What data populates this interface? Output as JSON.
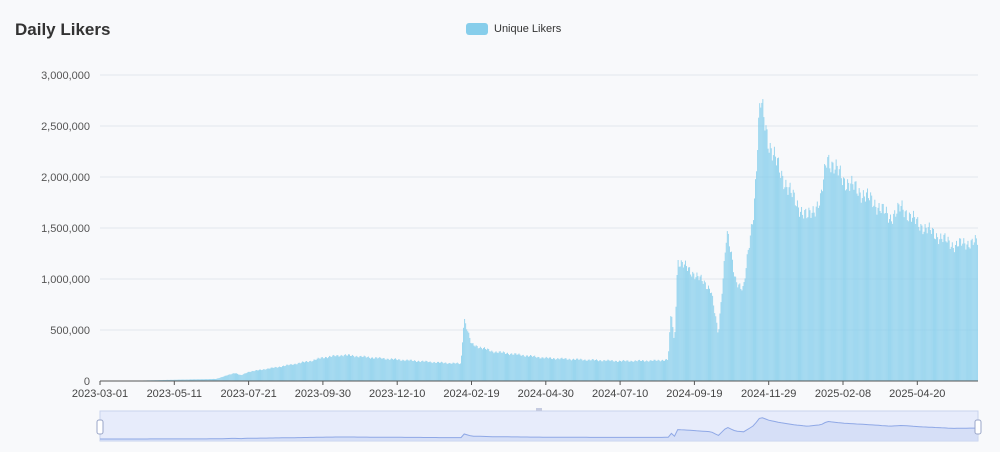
{
  "title": "Daily Likers",
  "chart_data": {
    "type": "bar",
    "title": "Daily Likers",
    "xlabel": "",
    "ylabel": "",
    "ylim": [
      0,
      3000000
    ],
    "yticks": [
      "0",
      "500,000",
      "1,000,000",
      "1,500,000",
      "2,000,000",
      "2,500,000",
      "3,000,000"
    ],
    "xticks": [
      "2023-03-01",
      "2023-05-11",
      "2023-07-21",
      "2023-09-30",
      "2023-12-10",
      "2024-02-19",
      "2024-04-30",
      "2024-07-10",
      "2024-09-19",
      "2024-11-29",
      "2025-02-08",
      "2025-04-20"
    ],
    "grid": true,
    "legend_position": "top-center",
    "color": "#87ceeb",
    "series": [
      {
        "name": "Unique Likers",
        "points": [
          [
            "2023-03-01",
            3000
          ],
          [
            "2023-04-10",
            5000
          ],
          [
            "2023-05-11",
            12000
          ],
          [
            "2023-06-20",
            20000
          ],
          [
            "2023-07-08",
            80000
          ],
          [
            "2023-07-14",
            55000
          ],
          [
            "2023-07-21",
            90000
          ],
          [
            "2023-08-20",
            140000
          ],
          [
            "2023-09-20",
            200000
          ],
          [
            "2023-09-30",
            230000
          ],
          [
            "2023-10-20",
            255000
          ],
          [
            "2023-11-15",
            230000
          ],
          [
            "2023-12-10",
            210000
          ],
          [
            "2024-01-20",
            180000
          ],
          [
            "2024-02-09",
            170000
          ],
          [
            "2024-02-12",
            620000
          ],
          [
            "2024-02-19",
            360000
          ],
          [
            "2024-03-10",
            290000
          ],
          [
            "2024-04-10",
            250000
          ],
          [
            "2024-04-30",
            225000
          ],
          [
            "2024-06-01",
            210000
          ],
          [
            "2024-07-10",
            195000
          ],
          [
            "2024-08-15",
            200000
          ],
          [
            "2024-08-25",
            210000
          ],
          [
            "2024-08-28",
            700000
          ],
          [
            "2024-08-31",
            350000
          ],
          [
            "2024-09-03",
            1180000
          ],
          [
            "2024-09-19",
            1050000
          ],
          [
            "2024-10-05",
            900000
          ],
          [
            "2024-10-12",
            450000
          ],
          [
            "2024-10-20",
            1480000
          ],
          [
            "2024-10-28",
            1000000
          ],
          [
            "2024-11-05",
            900000
          ],
          [
            "2024-11-15",
            1700000
          ],
          [
            "2024-11-21",
            2750000
          ],
          [
            "2024-11-29",
            2350000
          ],
          [
            "2024-12-10",
            2050000
          ],
          [
            "2024-12-25",
            1750000
          ],
          [
            "2025-01-05",
            1600000
          ],
          [
            "2025-01-18",
            1780000
          ],
          [
            "2025-01-24",
            2200000
          ],
          [
            "2025-02-08",
            1980000
          ],
          [
            "2025-02-25",
            1850000
          ],
          [
            "2025-03-10",
            1750000
          ],
          [
            "2025-03-25",
            1600000
          ],
          [
            "2025-04-05",
            1700000
          ],
          [
            "2025-04-20",
            1550000
          ],
          [
            "2025-05-10",
            1420000
          ],
          [
            "2025-05-25",
            1330000
          ],
          [
            "2025-06-10",
            1360000
          ]
        ]
      }
    ]
  }
}
